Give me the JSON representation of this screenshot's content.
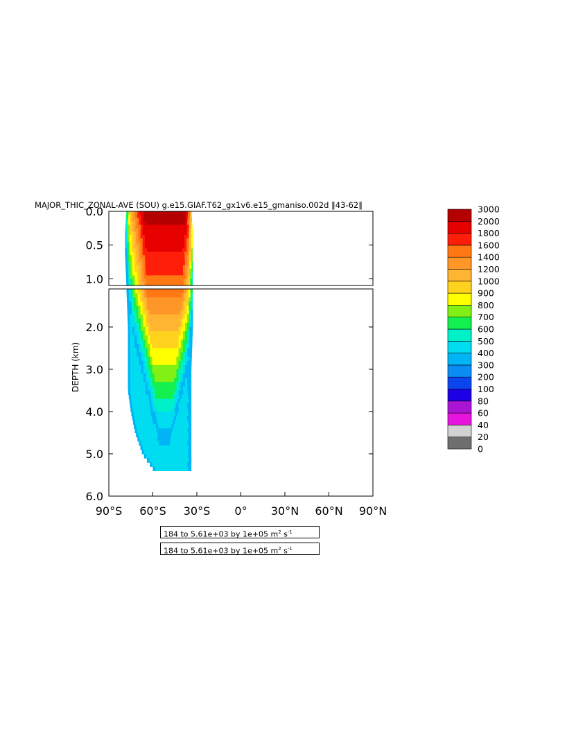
{
  "chart_data": {
    "type": "heatmap",
    "title": "MAJOR_THIC_ZONAL-AVE (SOU) g.e15.GIAF.T62_gx1v6.e15_gmaniso.002d ‖43-62‖",
    "xlabel": "",
    "ylabel": "DEPTH (km)",
    "xlim": [
      -90,
      90
    ],
    "upper_panel_ylim": [
      0.0,
      1.1
    ],
    "lower_panel_ylim": [
      1.1,
      6.0
    ],
    "upper_panel_yticks": [
      {
        "value": 0.0,
        "label": "0.0"
      },
      {
        "value": 0.5,
        "label": "0.5"
      },
      {
        "value": 1.0,
        "label": "1.0"
      }
    ],
    "lower_panel_yticks": [
      {
        "value": 2.0,
        "label": "2.0"
      },
      {
        "value": 3.0,
        "label": "3.0"
      },
      {
        "value": 4.0,
        "label": "4.0"
      },
      {
        "value": 5.0,
        "label": "5.0"
      },
      {
        "value": 6.0,
        "label": "6.0"
      }
    ],
    "xticks": [
      {
        "value": -90,
        "label": "90°S"
      },
      {
        "value": -60,
        "label": "60°S"
      },
      {
        "value": -30,
        "label": "30°S"
      },
      {
        "value": 0,
        "label": "0°"
      },
      {
        "value": 30,
        "label": "30°N"
      },
      {
        "value": 60,
        "label": "60°N"
      },
      {
        "value": 90,
        "label": "90°N"
      }
    ],
    "colorbar": {
      "levels": [
        "0",
        "20",
        "40",
        "60",
        "80",
        "100",
        "200",
        "300",
        "400",
        "500",
        "600",
        "700",
        "800",
        "900",
        "1000",
        "1200",
        "1400",
        "1600",
        "1800",
        "2000",
        "3000"
      ],
      "colors": [
        "#6e6e6e",
        "#d2d2d2",
        "#e614dc",
        "#aa14d2",
        "#1e00e6",
        "#0a46f0",
        "#0a8cf5",
        "#00b4f5",
        "#00dcf0",
        "#00f0c8",
        "#14f050",
        "#82f014",
        "#ffff00",
        "#ffd21e",
        "#ffb432",
        "#ff9628",
        "#ff7814",
        "#ff1e0a",
        "#e60000",
        "#b40000"
      ]
    },
    "field": {
      "description_levels": "band_value maps to colorbar index",
      "profile": [
        {
          "depth": 0.0,
          "lat_start": -78,
          "lat_end": -34
        },
        {
          "depth": 0.3,
          "lat_start": -79,
          "lat_end": -33
        },
        {
          "depth": 0.6,
          "lat_start": -79,
          "lat_end": -33
        },
        {
          "depth": 1.1,
          "lat_start": -78,
          "lat_end": -33
        },
        {
          "depth": 2.0,
          "lat_start": -77,
          "lat_end": -33
        },
        {
          "depth": 3.0,
          "lat_start": -77,
          "lat_end": -34
        },
        {
          "depth": 3.5,
          "lat_start": -77,
          "lat_end": -34
        },
        {
          "depth": 4.0,
          "lat_start": -75,
          "lat_end": -34
        },
        {
          "depth": 4.5,
          "lat_start": -72,
          "lat_end": -34
        },
        {
          "depth": 5.0,
          "lat_start": -67,
          "lat_end": -34
        },
        {
          "depth": 5.35,
          "lat_start": -60,
          "lat_end": -34
        }
      ],
      "core_lat": -52,
      "max_value_surface": 3000
    },
    "info_lines": [
      {
        "text": "184 to 5.61e+03 by 1e+05 m",
        "sup": "2",
        "tail": " s",
        "sup2": "-1"
      },
      {
        "text": "184 to 5.61e+03 by 1e+05 m",
        "sup": "2",
        "tail": " s",
        "sup2": "-1"
      }
    ]
  }
}
